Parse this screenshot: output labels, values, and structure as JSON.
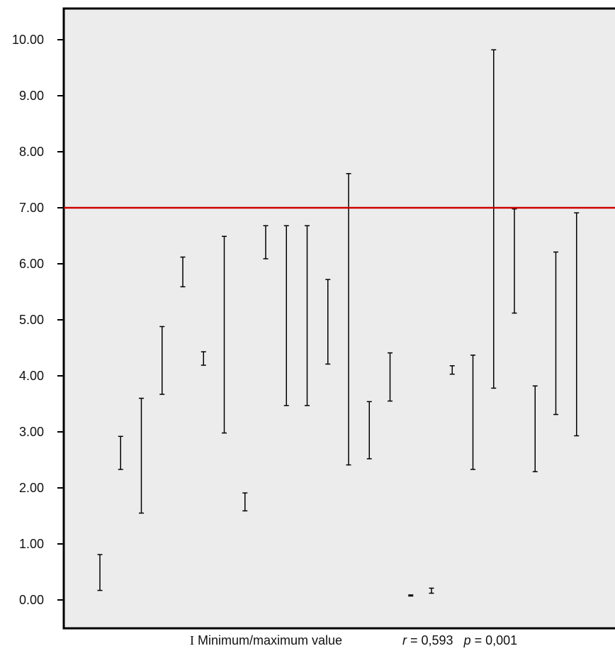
{
  "chart_data": {
    "type": "range-bar",
    "ylim": [
      -0.5,
      10.5
    ],
    "yticks": [
      "0.00",
      "1.00",
      "2.00",
      "3.00",
      "4.00",
      "5.00",
      "6.00",
      "7.00",
      "8.00",
      "9.00",
      "10.00"
    ],
    "grid": false,
    "reference_line": {
      "y": 7.0,
      "color": "#cc0000"
    },
    "plot_background": "#ececec",
    "series": [
      {
        "min": 0.17,
        "max": 0.81
      },
      {
        "min": 2.33,
        "max": 2.92
      },
      {
        "min": 1.55,
        "max": 3.6
      },
      {
        "min": 3.67,
        "max": 4.88
      },
      {
        "min": 5.59,
        "max": 6.12
      },
      {
        "min": 4.19,
        "max": 4.43
      },
      {
        "min": 2.98,
        "max": 6.49
      },
      {
        "min": 1.59,
        "max": 1.91
      },
      {
        "min": 6.09,
        "max": 6.68
      },
      {
        "min": 3.47,
        "max": 6.68
      },
      {
        "min": 3.47,
        "max": 6.68
      },
      {
        "min": 4.21,
        "max": 5.72
      },
      {
        "min": 2.41,
        "max": 7.61
      },
      {
        "min": 2.52,
        "max": 3.54
      },
      {
        "min": 3.55,
        "max": 4.41
      },
      {
        "min": 0.07,
        "max": 0.09
      },
      {
        "min": 0.12,
        "max": 0.21
      },
      {
        "min": 4.03,
        "max": 4.18
      },
      {
        "min": 2.33,
        "max": 4.37
      },
      {
        "min": 3.78,
        "max": 9.82
      },
      {
        "min": 5.12,
        "max": 6.98
      },
      {
        "min": 2.29,
        "max": 3.82
      },
      {
        "min": 3.31,
        "max": 6.21
      },
      {
        "min": 2.93,
        "max": 6.91
      }
    ]
  },
  "caption": {
    "legend_symbol": "I",
    "legend_text": "Minimum/maximum value",
    "r_label": "r",
    "r_value": "= 0,593",
    "p_label": "p",
    "p_value": "= 0,001"
  }
}
